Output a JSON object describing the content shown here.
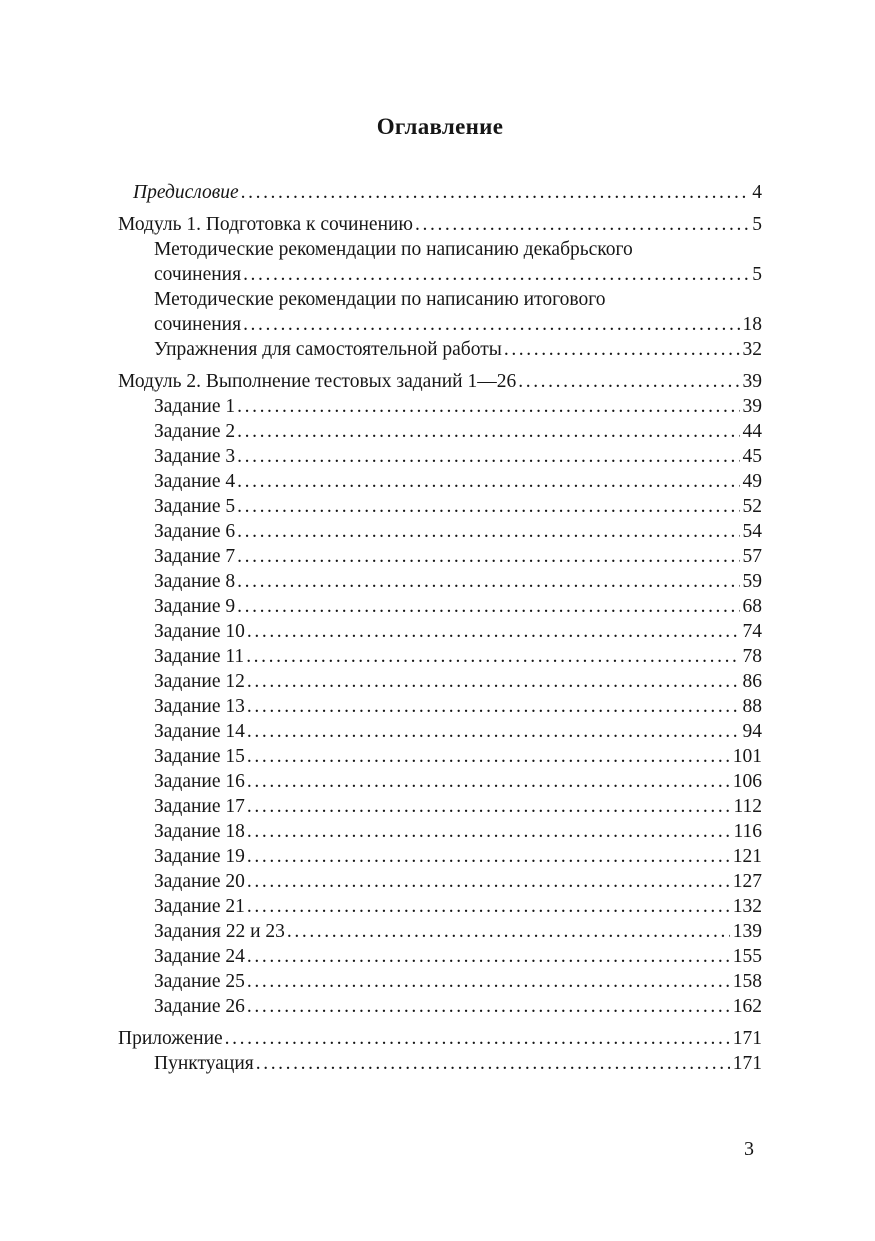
{
  "title": "Оглавление",
  "page_number": "3",
  "toc": {
    "entries": [
      {
        "indent": "preface",
        "italic": true,
        "gap": false,
        "lines": [
          "Предисловие"
        ],
        "page": "4"
      },
      {
        "indent": "top",
        "italic": false,
        "gap": true,
        "lines": [
          "Модуль 1. Подготовка к сочинению"
        ],
        "page": "5"
      },
      {
        "indent": "sub",
        "italic": false,
        "gap": false,
        "lines": [
          "Методические рекомендации по написанию декабрьского",
          "сочинения"
        ],
        "page": "5"
      },
      {
        "indent": "sub",
        "italic": false,
        "gap": false,
        "lines": [
          "Методические рекомендации по написанию итогового",
          "сочинения"
        ],
        "page": "18"
      },
      {
        "indent": "sub",
        "italic": false,
        "gap": false,
        "lines": [
          "Упражнения для самостоятельной работы"
        ],
        "page": "32"
      },
      {
        "indent": "top",
        "italic": false,
        "gap": true,
        "lines": [
          "Модуль 2. Выполнение тестовых заданий 1—26"
        ],
        "page": "39"
      },
      {
        "indent": "sub",
        "italic": false,
        "gap": false,
        "lines": [
          "Задание 1"
        ],
        "page": "39"
      },
      {
        "indent": "sub",
        "italic": false,
        "gap": false,
        "lines": [
          "Задание 2"
        ],
        "page": "44"
      },
      {
        "indent": "sub",
        "italic": false,
        "gap": false,
        "lines": [
          "Задание 3"
        ],
        "page": "45"
      },
      {
        "indent": "sub",
        "italic": false,
        "gap": false,
        "lines": [
          "Задание 4"
        ],
        "page": "49"
      },
      {
        "indent": "sub",
        "italic": false,
        "gap": false,
        "lines": [
          "Задание 5"
        ],
        "page": "52"
      },
      {
        "indent": "sub",
        "italic": false,
        "gap": false,
        "lines": [
          "Задание 6"
        ],
        "page": "54"
      },
      {
        "indent": "sub",
        "italic": false,
        "gap": false,
        "lines": [
          "Задание 7"
        ],
        "page": "57"
      },
      {
        "indent": "sub",
        "italic": false,
        "gap": false,
        "lines": [
          "Задание 8"
        ],
        "page": "59"
      },
      {
        "indent": "sub",
        "italic": false,
        "gap": false,
        "lines": [
          "Задание 9"
        ],
        "page": "68"
      },
      {
        "indent": "sub",
        "italic": false,
        "gap": false,
        "lines": [
          "Задание 10"
        ],
        "page": "74"
      },
      {
        "indent": "sub",
        "italic": false,
        "gap": false,
        "lines": [
          "Задание 11"
        ],
        "page": "78"
      },
      {
        "indent": "sub",
        "italic": false,
        "gap": false,
        "lines": [
          "Задание 12"
        ],
        "page": "86"
      },
      {
        "indent": "sub",
        "italic": false,
        "gap": false,
        "lines": [
          "Задание 13"
        ],
        "page": "88"
      },
      {
        "indent": "sub",
        "italic": false,
        "gap": false,
        "lines": [
          "Задание 14"
        ],
        "page": "94"
      },
      {
        "indent": "sub",
        "italic": false,
        "gap": false,
        "lines": [
          "Задание 15"
        ],
        "page": "101"
      },
      {
        "indent": "sub",
        "italic": false,
        "gap": false,
        "lines": [
          "Задание 16"
        ],
        "page": "106"
      },
      {
        "indent": "sub",
        "italic": false,
        "gap": false,
        "lines": [
          "Задание 17"
        ],
        "page": "112"
      },
      {
        "indent": "sub",
        "italic": false,
        "gap": false,
        "lines": [
          "Задание 18"
        ],
        "page": "116"
      },
      {
        "indent": "sub",
        "italic": false,
        "gap": false,
        "lines": [
          "Задание 19"
        ],
        "page": "121"
      },
      {
        "indent": "sub",
        "italic": false,
        "gap": false,
        "lines": [
          "Задание 20"
        ],
        "page": "127"
      },
      {
        "indent": "sub",
        "italic": false,
        "gap": false,
        "lines": [
          "Задание 21"
        ],
        "page": "132"
      },
      {
        "indent": "sub",
        "italic": false,
        "gap": false,
        "lines": [
          "Задания 22 и 23"
        ],
        "page": "139"
      },
      {
        "indent": "sub",
        "italic": false,
        "gap": false,
        "lines": [
          "Задание 24"
        ],
        "page": "155"
      },
      {
        "indent": "sub",
        "italic": false,
        "gap": false,
        "lines": [
          "Задание 25"
        ],
        "page": "158"
      },
      {
        "indent": "sub",
        "italic": false,
        "gap": false,
        "lines": [
          "Задание 26"
        ],
        "page": "162"
      },
      {
        "indent": "top",
        "italic": false,
        "gap": true,
        "lines": [
          "Приложение"
        ],
        "page": "171"
      },
      {
        "indent": "sub",
        "italic": false,
        "gap": false,
        "lines": [
          "Пунктуация"
        ],
        "page": "171"
      }
    ]
  }
}
